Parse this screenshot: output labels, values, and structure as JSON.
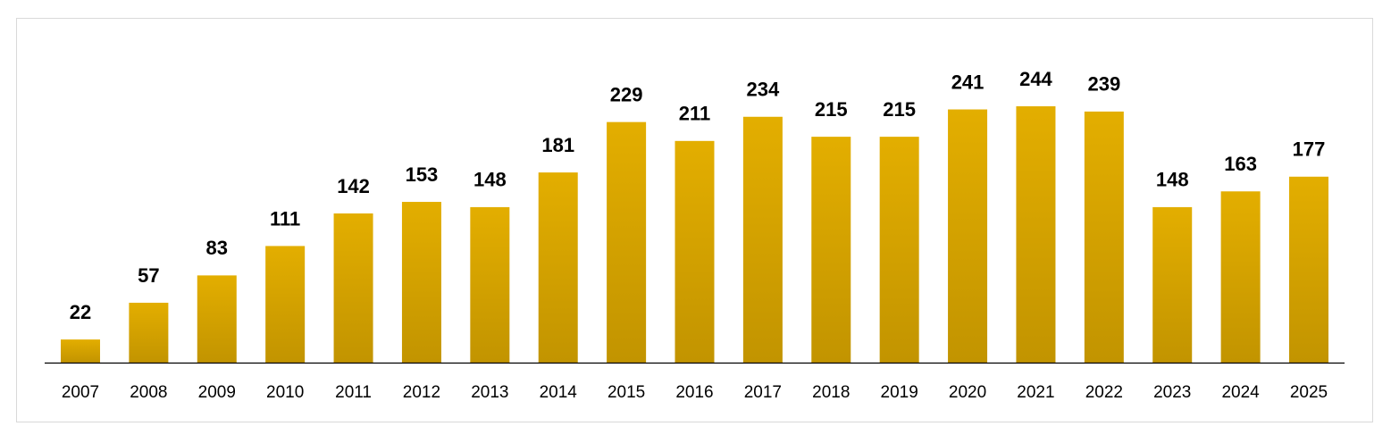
{
  "chart_data": {
    "type": "bar",
    "categories": [
      "2007",
      "2008",
      "2009",
      "2010",
      "2011",
      "2012",
      "2013",
      "2014",
      "2015",
      "2016",
      "2017",
      "2018",
      "2019",
      "2020",
      "2021",
      "2022",
      "2023",
      "2024",
      "2025"
    ],
    "values": [
      22,
      57,
      83,
      111,
      142,
      153,
      148,
      181,
      229,
      211,
      234,
      215,
      215,
      241,
      244,
      239,
      148,
      163,
      177
    ],
    "color": "#e3ae00"
  }
}
